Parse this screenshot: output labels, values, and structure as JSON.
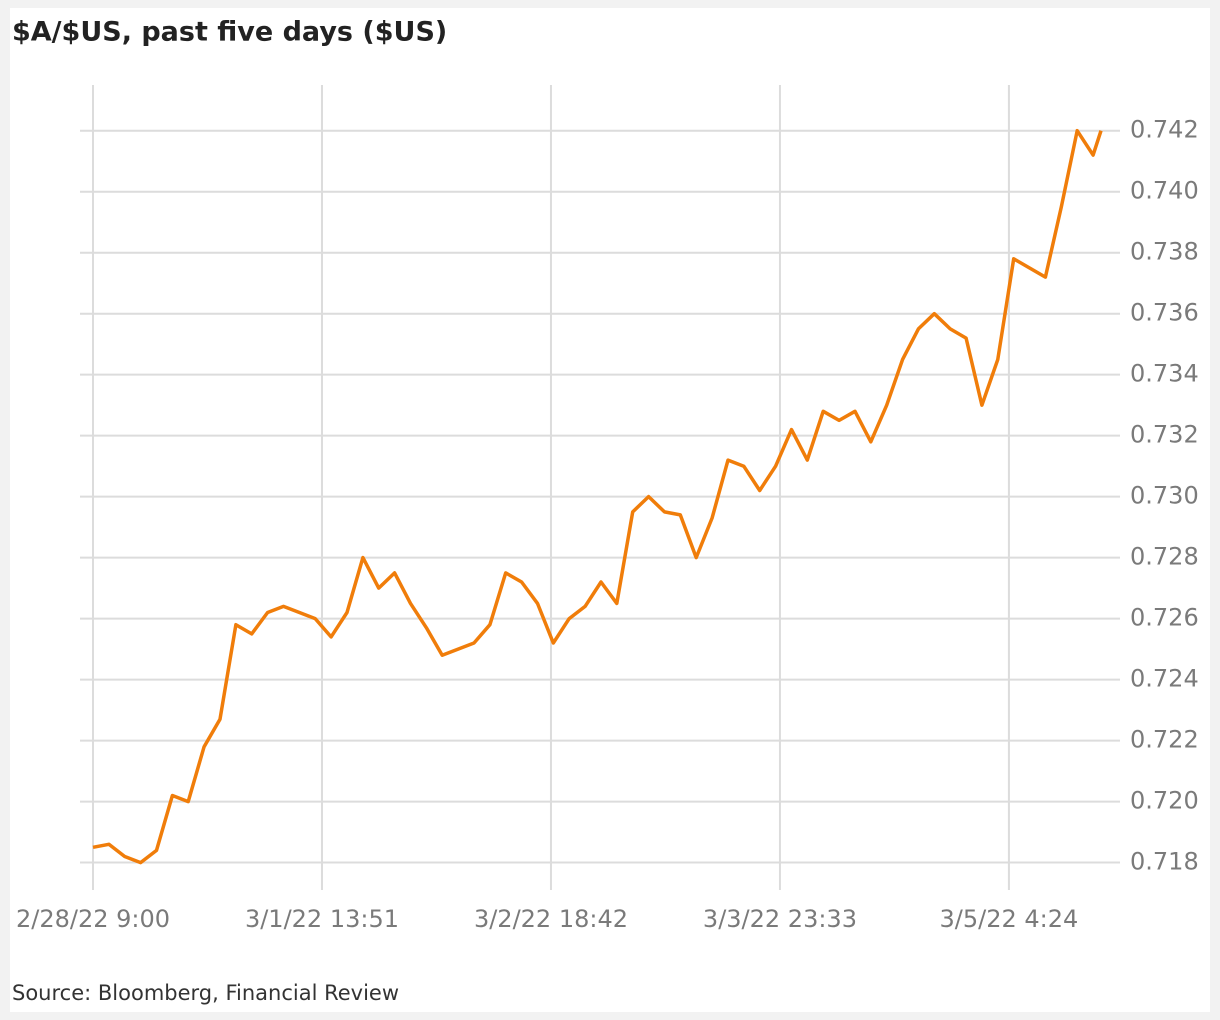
{
  "chart_data": {
    "type": "line",
    "title": "$A/$US, past five days ($US)",
    "source": "Source: Bloomberg, Financial Review",
    "x": [
      "2/28/22 9:00",
      "2/28/22 11:00",
      "2/28/22 13:00",
      "2/28/22 15:00",
      "2/28/22 17:00",
      "2/28/22 19:00",
      "2/28/22 21:00",
      "2/28/22 23:00",
      "3/1/22 1:00",
      "3/1/22 3:00",
      "3/1/22 5:00",
      "3/1/22 7:00",
      "3/1/22 9:00",
      "3/1/22 11:00",
      "3/1/22 13:00",
      "3/1/22 15:00",
      "3/1/22 17:00",
      "3/1/22 19:00",
      "3/1/22 21:00",
      "3/1/22 23:00",
      "3/2/22 1:00",
      "3/2/22 3:00",
      "3/2/22 5:00",
      "3/2/22 7:00",
      "3/2/22 9:00",
      "3/2/22 11:00",
      "3/2/22 13:00",
      "3/2/22 15:00",
      "3/2/22 17:00",
      "3/2/22 19:00",
      "3/2/22 21:00",
      "3/2/22 23:00",
      "3/3/22 1:00",
      "3/3/22 3:00",
      "3/3/22 5:00",
      "3/3/22 7:00",
      "3/3/22 9:00",
      "3/3/22 11:00",
      "3/3/22 13:00",
      "3/3/22 15:00",
      "3/3/22 17:00",
      "3/3/22 19:00",
      "3/3/22 21:00",
      "3/3/22 23:00",
      "3/4/22 1:00",
      "3/4/22 3:00",
      "3/4/22 5:00",
      "3/4/22 7:00",
      "3/4/22 9:00",
      "3/4/22 11:00",
      "3/4/22 13:00",
      "3/4/22 15:00",
      "3/4/22 17:00",
      "3/4/22 19:00",
      "3/4/22 21:00",
      "3/4/22 23:00",
      "3/5/22 1:00",
      "3/5/22 3:00",
      "3/5/22 5:00",
      "3/5/22 7:00",
      "3/5/22 9:00",
      "3/5/22 11:00",
      "3/5/22 13:00",
      "3/5/22 15:00",
      "3/5/22 16:00"
    ],
    "series": [
      {
        "name": "$A/$US",
        "color": "#f07d0a",
        "values": [
          0.7185,
          0.7186,
          0.7182,
          0.718,
          0.7184,
          0.7202,
          0.72,
          0.7218,
          0.7227,
          0.7258,
          0.7255,
          0.7262,
          0.7264,
          0.7262,
          0.726,
          0.7254,
          0.7262,
          0.728,
          0.727,
          0.7275,
          0.7265,
          0.7257,
          0.7248,
          0.725,
          0.7252,
          0.7258,
          0.7275,
          0.7272,
          0.7265,
          0.7252,
          0.726,
          0.7264,
          0.7272,
          0.7265,
          0.7295,
          0.73,
          0.7295,
          0.7294,
          0.728,
          0.7293,
          0.7312,
          0.731,
          0.7302,
          0.731,
          0.7322,
          0.7312,
          0.7328,
          0.7325,
          0.7328,
          0.7318,
          0.733,
          0.7345,
          0.7355,
          0.736,
          0.7355,
          0.7352,
          0.733,
          0.7345,
          0.7378,
          0.7375,
          0.7372,
          0.7395,
          0.742,
          0.7412,
          0.742
        ]
      }
    ],
    "xlim": [
      "2/28/22 9:00",
      "3/5/22 16:00"
    ],
    "xticks": [
      "2/28/22 9:00",
      "3/1/22 13:51",
      "3/2/22 18:42",
      "3/3/22 23:33",
      "3/5/22 4:24"
    ],
    "ylim": [
      0.7171,
      0.7435
    ],
    "yticks": [
      0.718,
      0.72,
      0.722,
      0.724,
      0.726,
      0.728,
      0.73,
      0.732,
      0.734,
      0.736,
      0.738,
      0.74,
      0.742
    ],
    "ytick_labels": [
      "0.718",
      "0.720",
      "0.722",
      "0.724",
      "0.726",
      "0.728",
      "0.730",
      "0.732",
      "0.734",
      "0.736",
      "0.738",
      "0.740",
      "0.742"
    ],
    "grid": true
  }
}
